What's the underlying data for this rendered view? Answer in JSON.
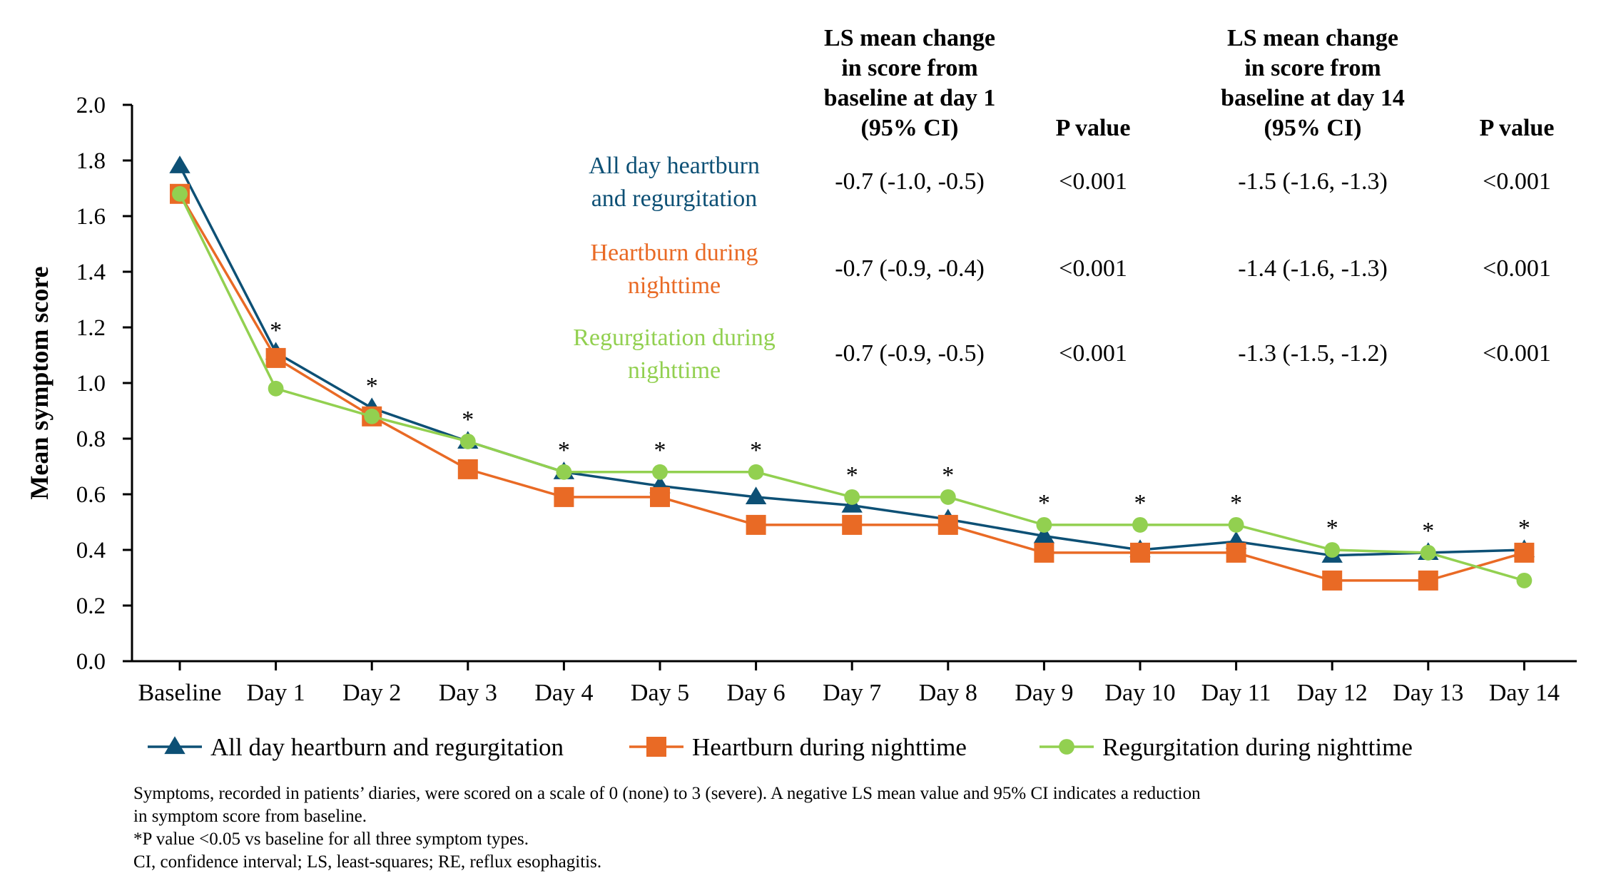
{
  "chart_data": {
    "type": "line",
    "ylabel": "Mean symptom score",
    "xlabel": "",
    "ylim": [
      0,
      2.0
    ],
    "yticks": [
      "0.0",
      "0.2",
      "0.4",
      "0.6",
      "0.8",
      "1.0",
      "1.2",
      "1.4",
      "1.6",
      "1.8",
      "2.0"
    ],
    "categories": [
      "Baseline",
      "Day 1",
      "Day 2",
      "Day 3",
      "Day 4",
      "Day 5",
      "Day 6",
      "Day 7",
      "Day 8",
      "Day 9",
      "Day 10",
      "Day 11",
      "Day 12",
      "Day 13",
      "Day 14"
    ],
    "significance_marker": "*",
    "significant": [
      false,
      true,
      true,
      true,
      true,
      true,
      true,
      true,
      true,
      true,
      true,
      true,
      true,
      true,
      true
    ],
    "grid": false,
    "legend_position": "bottom",
    "series": [
      {
        "name": "All day heartburn and regurgitation",
        "color": "#0d5075",
        "marker": "triangle",
        "values": [
          1.78,
          1.11,
          0.91,
          0.79,
          0.68,
          0.63,
          0.59,
          0.56,
          0.51,
          0.45,
          0.4,
          0.43,
          0.38,
          0.39,
          0.4
        ]
      },
      {
        "name": "Heartburn during nighttime",
        "color": "#e96a25",
        "marker": "square",
        "values": [
          1.68,
          1.09,
          0.88,
          0.69,
          0.59,
          0.59,
          0.49,
          0.49,
          0.49,
          0.39,
          0.39,
          0.39,
          0.29,
          0.29,
          0.39
        ]
      },
      {
        "name": "Regurgitation during nighttime",
        "color": "#92d050",
        "marker": "circle",
        "values": [
          1.68,
          0.98,
          0.88,
          0.79,
          0.68,
          0.68,
          0.68,
          0.59,
          0.59,
          0.49,
          0.49,
          0.49,
          0.4,
          0.39,
          0.29
        ]
      }
    ]
  },
  "stats_table": {
    "headers": [
      "LS mean change in score from baseline at day 1 (95% CI)",
      "P value",
      "LS mean change in score from baseline at day 14 (95% CI)",
      "P value"
    ],
    "header_lines": [
      [
        "LS mean change",
        "in score from",
        "baseline at day 1",
        "(95% CI)"
      ],
      [
        "P value"
      ],
      [
        "LS mean change",
        "in score from",
        "baseline at day 14",
        "(95% CI)"
      ],
      [
        "P value"
      ]
    ],
    "rows": [
      {
        "label": "All day heartburn and regurgitation",
        "label_lines": [
          "All day heartburn",
          "and regurgitation"
        ],
        "color": "#0d5075",
        "cells": [
          "-0.7 (-1.0, -0.5)",
          "<0.001",
          "-1.5 (-1.6, -1.3)",
          "<0.001"
        ]
      },
      {
        "label": "Heartburn during nighttime",
        "label_lines": [
          "Heartburn during",
          "nighttime"
        ],
        "color": "#e96a25",
        "cells": [
          "-0.7 (-0.9, -0.4)",
          "<0.001",
          "-1.4 (-1.6, -1.3)",
          "<0.001"
        ]
      },
      {
        "label": "Regurgitation during nighttime",
        "label_lines": [
          "Regurgitation during",
          "nighttime"
        ],
        "color": "#92d050",
        "cells": [
          "-0.7 (-0.9, -0.5)",
          "<0.001",
          "-1.3 (-1.5, -1.2)",
          "<0.001"
        ]
      }
    ]
  },
  "footnotes": [
    "Symptoms, recorded in patients’ diaries, were scored on a scale of 0 (none) to 3 (severe). A negative LS mean value and 95% CI indicates a reduction",
    "in symptom score from baseline.",
    "*P value <0.05 vs baseline for all three symptom types.",
    "CI, confidence interval; LS, least-squares; RE, reflux esophagitis."
  ]
}
